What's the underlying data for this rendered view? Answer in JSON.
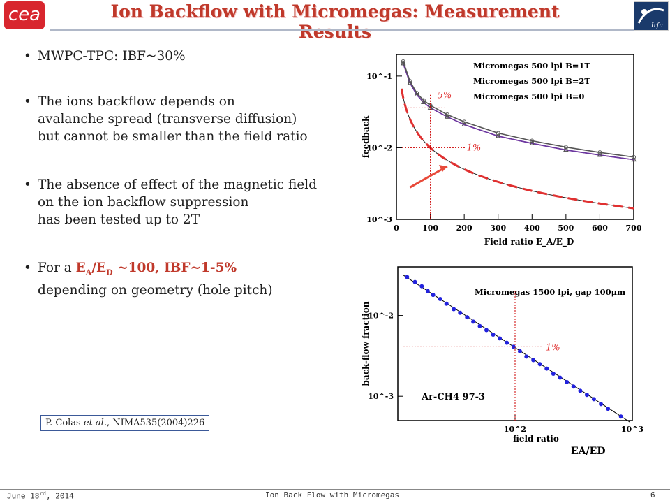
{
  "header": {
    "title": "Ion Backflow with Micromegas: Measurement Results",
    "logo_left": "cea",
    "logo_right_text": "Irfu"
  },
  "bullets": {
    "b1": "MWPC-TPC: IBF~30%",
    "b2_l1": "The ions backflow depends on",
    "b2_l2": "avalanche spread (transverse diffusion)",
    "b2_l3": "but cannot be smaller than the field ratio",
    "b3_l1": "The absence of effect of the magnetic field",
    "b3_l2": "on the ion backflow suppression",
    "b3_l3": "has been tested up to 2T",
    "b4_pre": "For a ",
    "b4_E": "E",
    "b4_A": "A",
    "b4_slash": "/E",
    "b4_D": "D",
    "b4_post": " ~100, IBF~1-5%",
    "b4_l2": "depending on geometry (hole pitch)"
  },
  "reference": {
    "authors": "P. Colas ",
    "etal": "et al.",
    "journal": ", NIMA535(2004)226"
  },
  "footer": {
    "date": "June 18rd, 2014",
    "center": "Ion Back Flow with Micromegas",
    "page": "6"
  },
  "colors": {
    "title": "#c0392b",
    "accent_red": "#e03030",
    "purple": "#a020a0",
    "blue": "#2222dd"
  },
  "chart_data": [
    {
      "type": "line",
      "ylabel": "feedback",
      "xlabel": "Field ratio E_A/E_D",
      "xlim": [
        0,
        700
      ],
      "ylim": [
        0.001,
        0.2
      ],
      "yscale": "log",
      "xticks": [
        "0",
        "100",
        "200",
        "300",
        "400",
        "500",
        "600",
        "700"
      ],
      "yticks": [
        "10^-1",
        "10^-2",
        "10^-3"
      ],
      "legend": [
        "Micromegas 500 lpi B=1T",
        "Micromegas 500 lpi B=2T",
        "Micromegas 500 lpi B=0"
      ],
      "annotations": [
        "5%",
        "1%"
      ],
      "series": [
        {
          "name": "Micromegas 500 lpi B=1T",
          "x": [
            20,
            40,
            60,
            80,
            100,
            150,
            200,
            300,
            400,
            500,
            600,
            700
          ],
          "y": [
            0.15,
            0.08,
            0.055,
            0.043,
            0.036,
            0.027,
            0.021,
            0.0145,
            0.0115,
            0.0093,
            0.0079,
            0.0068
          ]
        },
        {
          "name": "Micromegas 500 lpi B=2T",
          "x": [
            20,
            40,
            60,
            80,
            100,
            150,
            200,
            300,
            400,
            500,
            600,
            700
          ],
          "y": [
            0.15,
            0.08,
            0.055,
            0.043,
            0.036,
            0.027,
            0.021,
            0.0145,
            0.0115,
            0.0093,
            0.0079,
            0.0068
          ]
        },
        {
          "name": "Micromegas 500 lpi B=0",
          "x": [
            20,
            40,
            60,
            80,
            100,
            150,
            200,
            300,
            400,
            500,
            600,
            700
          ],
          "y": [
            0.16,
            0.085,
            0.058,
            0.046,
            0.039,
            0.029,
            0.023,
            0.016,
            0.0125,
            0.0102,
            0.0086,
            0.0074
          ]
        }
      ]
    },
    {
      "type": "scatter",
      "ylabel": "back-flow fraction",
      "xlabel": "field ratio",
      "xscale": "log",
      "yscale": "log",
      "xlim": [
        10,
        1000
      ],
      "ylim": [
        0.0005,
        0.04
      ],
      "xticks": [
        "10^2",
        "10^3"
      ],
      "yticks": [
        "10^-2",
        "10^-3"
      ],
      "legend": [
        "Micromegas 1500 lpi, gap 100μm"
      ],
      "annotations": [
        "1%",
        "Ar-CH4 97-3",
        "EA/ED"
      ],
      "series": [
        {
          "name": "Micromegas 1500 lpi, gap 100μm",
          "x": [
            12,
            14,
            16,
            18,
            20,
            23,
            26,
            30,
            34,
            39,
            44,
            50,
            57,
            65,
            74,
            85,
            97,
            110,
            125,
            143,
            163,
            186,
            212,
            242,
            276,
            315,
            360,
            410,
            470,
            540,
            620,
            800
          ],
          "y": [
            0.03,
            0.026,
            0.023,
            0.02,
            0.018,
            0.016,
            0.014,
            0.012,
            0.0108,
            0.0095,
            0.0084,
            0.0074,
            0.0066,
            0.0058,
            0.0052,
            0.0046,
            0.0041,
            0.0036,
            0.0031,
            0.0028,
            0.0025,
            0.0022,
            0.0019,
            0.0017,
            0.0015,
            0.00132,
            0.00117,
            0.00104,
            0.00092,
            0.0008,
            0.0007,
            0.00056
          ]
        }
      ]
    }
  ]
}
